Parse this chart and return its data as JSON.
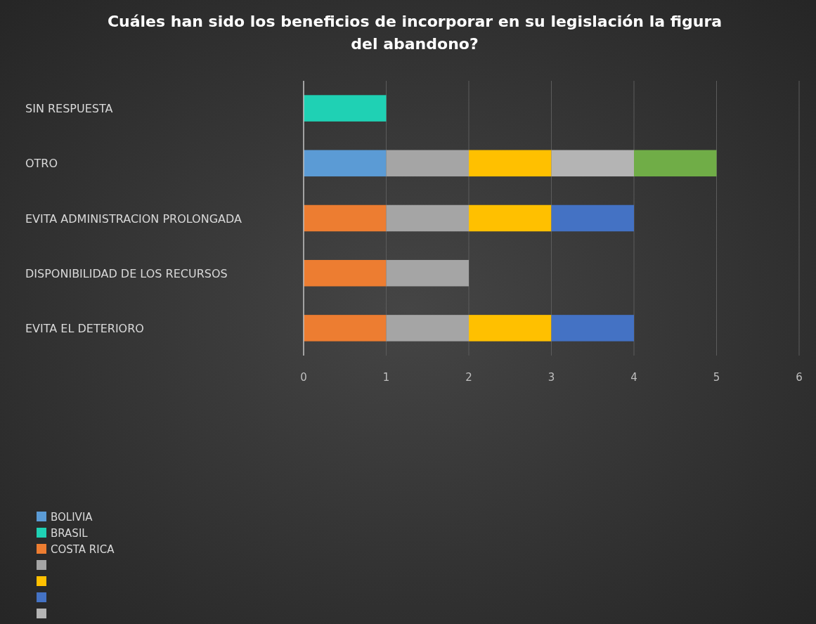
{
  "chart_data": {
    "type": "bar",
    "orientation": "horizontal",
    "stacked": true,
    "title": "Cuáles han sido los beneficios de incorporar en su legislación la figura del abandono?",
    "categories": [
      "SIN RESPUESTA",
      "OTRO",
      "EVITA ADMINISTRACION PROLONGADA",
      "DISPONIBILIDAD DE LOS RECURSOS",
      "EVITA EL DETERIORO"
    ],
    "series": [
      {
        "name": "BOLIVIA",
        "color": "#5b9bd5",
        "values": [
          0,
          1,
          0,
          0,
          0
        ]
      },
      {
        "name": "BRASIL",
        "color": "#1fd1b4",
        "values": [
          1,
          0,
          0,
          0,
          0
        ]
      },
      {
        "name": "COSTA RICA",
        "color": "#ed7d31",
        "values": [
          0,
          0,
          1,
          1,
          1
        ]
      },
      {
        "color": "#a5a5a5",
        "values": [
          0,
          1,
          1,
          1,
          1
        ]
      },
      {
        "color": "#ffc000",
        "values": [
          0,
          1,
          1,
          0,
          1
        ]
      },
      {
        "color": "#4472c4",
        "values": [
          0,
          0,
          1,
          0,
          1
        ]
      },
      {
        "color": "#b4b4b4",
        "values": [
          0,
          1,
          0,
          0,
          0
        ]
      },
      {
        "color": "#70ad47",
        "values": [
          0,
          1,
          0,
          0,
          0
        ]
      }
    ],
    "xlim": [
      0,
      6
    ],
    "xticks": [
      0,
      1,
      2,
      3,
      4,
      5,
      6
    ],
    "grid": "x",
    "legend": "bottom left"
  }
}
